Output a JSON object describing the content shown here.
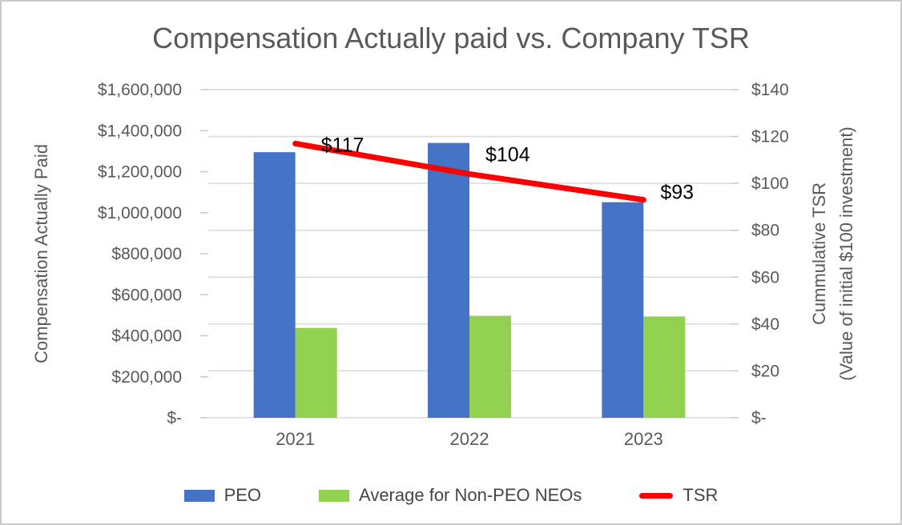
{
  "chart_data": {
    "type": "combo-bar-line",
    "title": "Compensation Actually paid vs. Company TSR",
    "categories": [
      "2021",
      "2022",
      "2023"
    ],
    "series": [
      {
        "name": "PEO",
        "type": "bar",
        "axis": "left",
        "color": "#4472C4",
        "values": [
          1295000,
          1340000,
          1051000
        ]
      },
      {
        "name": "Average for Non-PEO NEOs",
        "type": "bar",
        "axis": "left",
        "color": "#92D050",
        "values": [
          438000,
          497000,
          494000
        ]
      },
      {
        "name": "TSR",
        "type": "line",
        "axis": "right",
        "color": "#FB0000",
        "values": [
          117,
          104,
          93
        ],
        "labels": [
          "$117",
          "$104",
          "$93"
        ]
      }
    ],
    "left_axis": {
      "title": "Compensation Actually Paid",
      "min": 0,
      "max": 1600000,
      "step": 200000,
      "tick_labels": [
        "$1,600,000",
        "$1,400,000",
        "$1,200,000",
        "$1,000,000",
        "$800,000",
        "$600,000",
        "$400,000",
        "$200,000",
        "$-"
      ]
    },
    "right_axis": {
      "title_line1": "Cummulative TSR",
      "title_line2": "(Value of initial $100 investment)",
      "min": 0,
      "max": 140,
      "step": 20,
      "tick_labels": [
        "$140",
        "$120",
        "$100",
        "$80",
        "$60",
        "$40",
        "$20",
        "$-"
      ]
    },
    "xlabel": "",
    "gridlines": "horizontal",
    "legend_position": "bottom"
  },
  "colors": {
    "text": "#595959",
    "legend_text": "#454545",
    "grid": "#d9d9d9",
    "tick": "#c9c9c9",
    "data_label": "#000000",
    "frame_border": "#c9c9c9",
    "background": "#ffffff"
  }
}
